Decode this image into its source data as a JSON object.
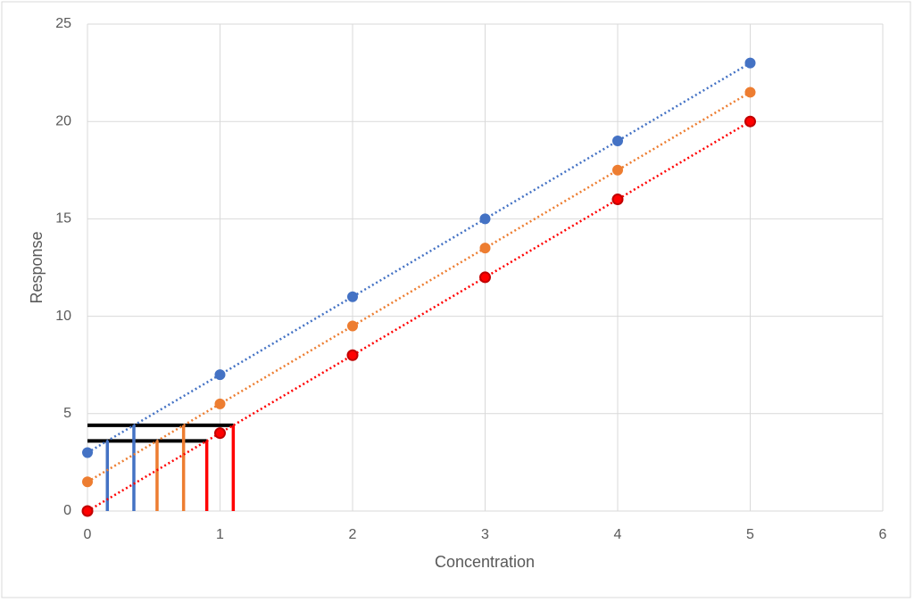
{
  "chart_data": {
    "type": "scatter",
    "xlabel": "Concentration",
    "ylabel": "Response",
    "x": [
      0,
      1,
      2,
      3,
      4,
      5
    ],
    "series": [
      {
        "color": "#4472c4",
        "values": [
          3,
          7,
          11,
          15,
          19,
          23
        ]
      },
      {
        "color": "#ed7d31",
        "values": [
          1.5,
          5.5,
          9.5,
          13.5,
          17.5,
          21.5
        ]
      },
      {
        "color": "#ff0000",
        "edgecolor": "#c00000",
        "values": [
          0,
          4,
          8,
          12,
          16,
          20
        ]
      }
    ],
    "trendline": "dotted",
    "hlines": [
      {
        "y": 4.4,
        "xmax": 1.1,
        "color": "#000000"
      },
      {
        "y": 3.6,
        "xmax": 0.9,
        "color": "#000000"
      }
    ],
    "vlines": [
      {
        "x": 0.15,
        "ymax": 3.6,
        "color": "#4472c4"
      },
      {
        "x": 0.35,
        "ymax": 4.4,
        "color": "#4472c4"
      },
      {
        "x": 0.525,
        "ymax": 3.6,
        "color": "#ed7d31"
      },
      {
        "x": 0.725,
        "ymax": 4.4,
        "color": "#ed7d31"
      },
      {
        "x": 0.9,
        "ymax": 3.6,
        "color": "#ff0000"
      },
      {
        "x": 1.1,
        "ymax": 4.4,
        "color": "#ff0000"
      }
    ],
    "xlim": [
      0,
      6
    ],
    "xticks": [
      0,
      1,
      2,
      3,
      4,
      5,
      6
    ],
    "ylim": [
      0,
      25
    ],
    "yticks": [
      0,
      5,
      10,
      15,
      20,
      25
    ],
    "grid": true
  }
}
